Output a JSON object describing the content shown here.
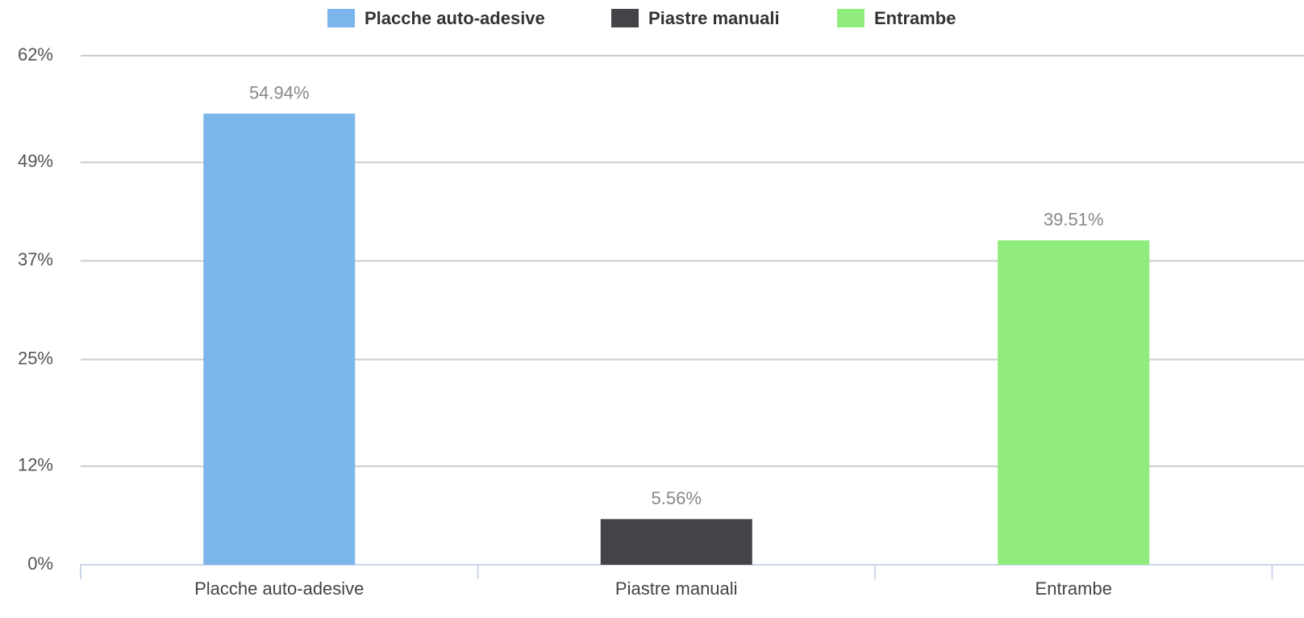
{
  "chart_data": {
    "type": "bar",
    "categories": [
      "Placche auto-adesive",
      "Piastre manuali",
      "Entrambe"
    ],
    "values": [
      54.94,
      5.56,
      39.51
    ],
    "value_labels": [
      "54.94%",
      "5.56%",
      "39.51%"
    ],
    "colors": [
      "#7cb5ec",
      "#434348",
      "#90ed7d"
    ],
    "ylim": [
      0,
      62
    ],
    "yticks": [
      {
        "value": 0,
        "label": "0%"
      },
      {
        "value": 12,
        "label": "12%"
      },
      {
        "value": 25,
        "label": "25%"
      },
      {
        "value": 37,
        "label": "37%"
      },
      {
        "value": 49,
        "label": "49%"
      },
      {
        "value": 62,
        "label": "62%"
      }
    ],
    "grid": true,
    "legend": "top"
  }
}
